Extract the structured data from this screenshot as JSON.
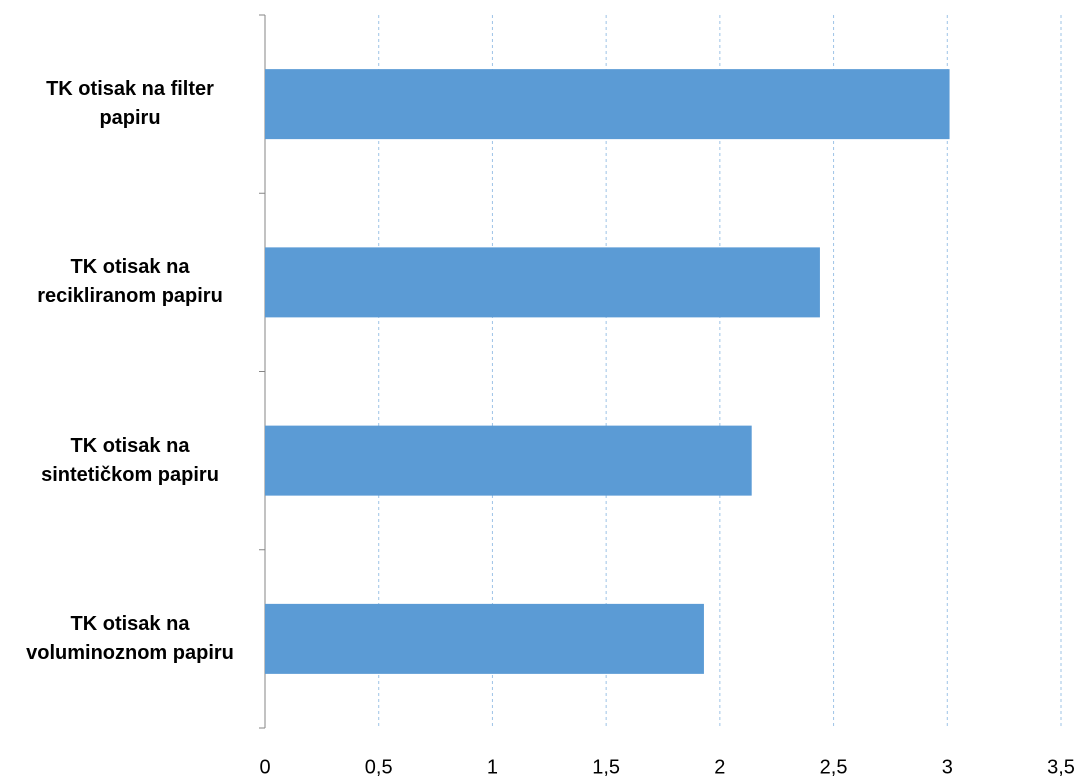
{
  "chart_data": {
    "type": "bar",
    "orientation": "horizontal",
    "categories": [
      "TK otisak na filter papiru",
      "TK otisak na recikliranom papiru",
      "TK otisak na sintetičkom papiru",
      "TK otisak na voluminoznom papiru"
    ],
    "values": [
      3.01,
      2.44,
      2.14,
      1.93
    ],
    "color": "#5b9bd5",
    "xlim": [
      0,
      3.5
    ],
    "xticks": [
      0,
      {
        "value": 0.5,
        "label": "0,5"
      },
      1,
      {
        "value": 1.5,
        "label": "1,5"
      },
      2,
      {
        "value": 2.5,
        "label": "2,5"
      },
      3,
      {
        "value": 3.5,
        "label": "3,5"
      }
    ],
    "grid": true
  }
}
